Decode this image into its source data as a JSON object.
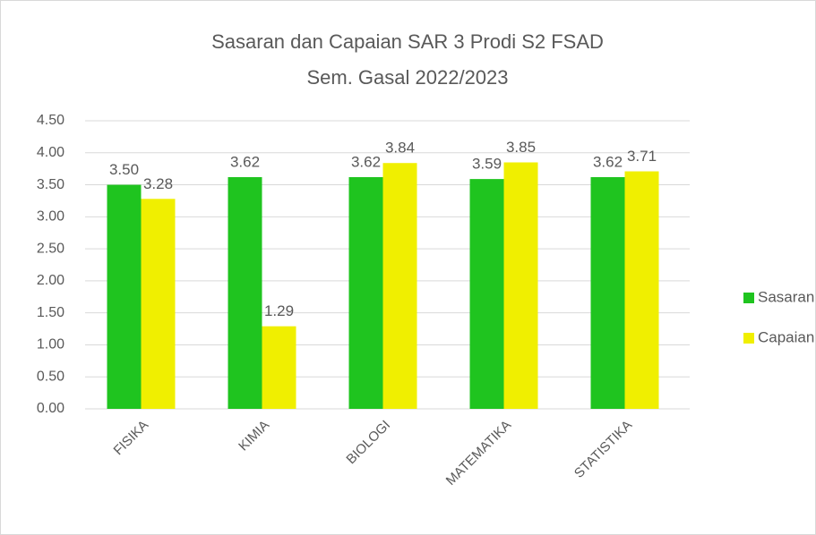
{
  "chart_data": {
    "type": "bar",
    "title": "Sasaran dan Capaian SAR 3 Prodi S2 FSAD",
    "subtitle": "Sem. Gasal 2022/2023",
    "categories": [
      "FISIKA",
      "KIMIA",
      "BIOLOGI",
      "MATEMATIKA",
      "STATISTIKA"
    ],
    "series": [
      {
        "name": "Sasaran",
        "color": "#1fc41f",
        "values": [
          3.5,
          3.62,
          3.62,
          3.59,
          3.62
        ],
        "value_labels": [
          "3.50",
          "3.62",
          "3.62",
          "3.59",
          "3.62"
        ]
      },
      {
        "name": "Capaian",
        "color": "#f0ef00",
        "values": [
          3.28,
          1.29,
          3.84,
          3.85,
          3.71
        ],
        "value_labels": [
          "3.28",
          "1.29",
          "3.84",
          "3.85",
          "3.71"
        ]
      }
    ],
    "ylim": [
      0,
      4.5
    ],
    "yticks": [
      {
        "value": 0,
        "label": "0.00"
      },
      {
        "value": 0.5,
        "label": "0.50"
      },
      {
        "value": 1,
        "label": "1.00"
      },
      {
        "value": 1.5,
        "label": "1.50"
      },
      {
        "value": 2,
        "label": "2.00"
      },
      {
        "value": 2.5,
        "label": "2.50"
      },
      {
        "value": 3,
        "label": "3.00"
      },
      {
        "value": 3.5,
        "label": "3.50"
      },
      {
        "value": 4,
        "label": "4.00"
      },
      {
        "value": 4.5,
        "label": "4.50"
      }
    ],
    "grid": true,
    "legend": "right"
  }
}
